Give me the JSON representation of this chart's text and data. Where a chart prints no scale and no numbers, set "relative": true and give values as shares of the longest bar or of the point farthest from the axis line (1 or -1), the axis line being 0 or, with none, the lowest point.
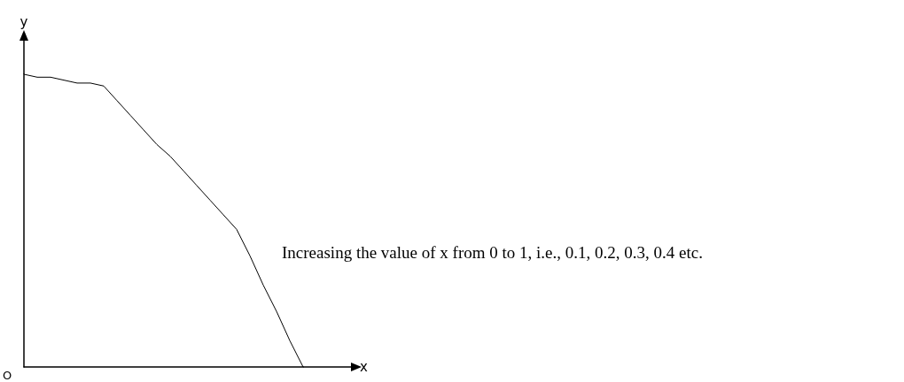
{
  "chart_data": {
    "type": "line",
    "relative": true,
    "xlabel": "x",
    "ylabel": "y",
    "marker": "none",
    "line_style": "solid",
    "categories": [
      null,
      null,
      null,
      null,
      null,
      null,
      null,
      null,
      null,
      null,
      null,
      null,
      null,
      null,
      null,
      null,
      null,
      null,
      null,
      null,
      null,
      null
    ],
    "series": [
      {
        "color": "#000000",
        "values": [
          1,
          0.99,
          0.99,
          0.98,
          0.97,
          0.97,
          0.96,
          0.91,
          0.86,
          0.81,
          0.76,
          0.72,
          0.67,
          0.62,
          0.57,
          0.52,
          0.47,
          0.38,
          0.28,
          0.19,
          0.09,
          0
        ]
      }
    ],
    "annotations": [
      "O",
      "Increasing the value of x from 0 to 1, i.e., 0.1, 0.2, 0.3, 0.4 etc."
    ]
  }
}
